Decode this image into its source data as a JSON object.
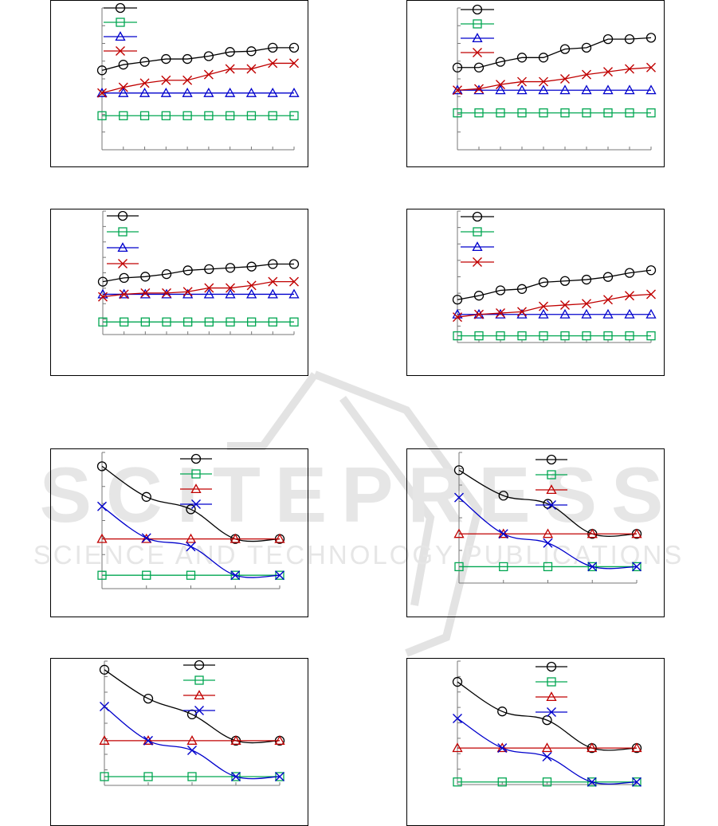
{
  "watermark": {
    "line1": "SCITEPRESS",
    "line2": "SCIENCE AND TECHNOLOGY PUBLICATIONS",
    "color": "#e3e3e3"
  },
  "colors": {
    "black": "#000000",
    "green": "#00a651",
    "blue": "#0000cc",
    "red": "#c00000"
  },
  "chart_data": [
    {
      "type": "line",
      "x": [
        1,
        2,
        3,
        4,
        5,
        6,
        7,
        8,
        9,
        10
      ],
      "ylim": [
        0,
        10
      ],
      "series": [
        {
          "marker": "circle",
          "color": "#000000",
          "values": [
            5.6,
            6.0,
            6.2,
            6.4,
            6.4,
            6.6,
            6.9,
            6.95,
            7.2,
            7.2
          ]
        },
        {
          "marker": "square",
          "color": "#00a651",
          "values": [
            2.4,
            2.4,
            2.4,
            2.4,
            2.4,
            2.4,
            2.4,
            2.4,
            2.4,
            2.4
          ]
        },
        {
          "marker": "triangle",
          "color": "#0000cc",
          "values": [
            4.0,
            4.0,
            4.0,
            4.0,
            4.0,
            4.0,
            4.0,
            4.0,
            4.0,
            4.0
          ]
        },
        {
          "marker": "x",
          "color": "#c00000",
          "values": [
            4.0,
            4.4,
            4.7,
            4.9,
            4.9,
            5.3,
            5.7,
            5.7,
            6.1,
            6.1
          ]
        }
      ]
    },
    {
      "type": "line",
      "x": [
        1,
        2,
        3,
        4,
        5,
        6,
        7,
        8,
        9,
        10
      ],
      "ylim": [
        0,
        10
      ],
      "series": [
        {
          "marker": "circle",
          "color": "#000000",
          "values": [
            5.8,
            5.8,
            6.2,
            6.5,
            6.5,
            7.1,
            7.2,
            7.8,
            7.8,
            7.9
          ]
        },
        {
          "marker": "square",
          "color": "#00a651",
          "values": [
            2.6,
            2.6,
            2.6,
            2.6,
            2.6,
            2.6,
            2.6,
            2.6,
            2.6,
            2.6
          ]
        },
        {
          "marker": "triangle",
          "color": "#0000cc",
          "values": [
            4.2,
            4.2,
            4.2,
            4.2,
            4.2,
            4.2,
            4.2,
            4.2,
            4.2,
            4.2
          ]
        },
        {
          "marker": "x",
          "color": "#c00000",
          "values": [
            4.2,
            4.3,
            4.6,
            4.8,
            4.8,
            5.0,
            5.3,
            5.5,
            5.7,
            5.8
          ]
        }
      ]
    },
    {
      "type": "line",
      "x": [
        1,
        2,
        3,
        4,
        5,
        6,
        7,
        8,
        9,
        10
      ],
      "ylim": [
        0,
        10
      ],
      "series": [
        {
          "marker": "circle",
          "color": "#000000",
          "values": [
            4.2,
            4.5,
            4.6,
            4.8,
            5.1,
            5.2,
            5.3,
            5.4,
            5.6,
            5.6
          ]
        },
        {
          "marker": "square",
          "color": "#00a651",
          "values": [
            1.0,
            1.0,
            1.0,
            1.0,
            1.0,
            1.0,
            1.0,
            1.0,
            1.0,
            1.0
          ]
        },
        {
          "marker": "triangle",
          "color": "#0000cc",
          "values": [
            3.2,
            3.2,
            3.2,
            3.2,
            3.2,
            3.2,
            3.2,
            3.2,
            3.2,
            3.2
          ]
        },
        {
          "marker": "x",
          "color": "#c00000",
          "values": [
            3.0,
            3.2,
            3.3,
            3.3,
            3.4,
            3.7,
            3.7,
            3.9,
            4.2,
            4.2
          ]
        }
      ]
    },
    {
      "type": "line",
      "x": [
        1,
        2,
        3,
        4,
        5,
        6,
        7,
        8,
        9,
        10
      ],
      "ylim": [
        0,
        10
      ],
      "series": [
        {
          "marker": "circle",
          "color": "#000000",
          "values": [
            3.2,
            3.5,
            3.9,
            4.0,
            4.5,
            4.6,
            4.7,
            4.9,
            5.2,
            5.4
          ]
        },
        {
          "marker": "square",
          "color": "#00a651",
          "values": [
            0.5,
            0.5,
            0.5,
            0.5,
            0.5,
            0.5,
            0.5,
            0.5,
            0.5,
            0.5
          ]
        },
        {
          "marker": "triangle",
          "color": "#0000cc",
          "values": [
            2.1,
            2.1,
            2.1,
            2.1,
            2.1,
            2.1,
            2.1,
            2.1,
            2.1,
            2.1
          ]
        },
        {
          "marker": "x",
          "color": "#c00000",
          "values": [
            1.9,
            2.1,
            2.2,
            2.3,
            2.7,
            2.8,
            2.9,
            3.2,
            3.5,
            3.6
          ]
        }
      ]
    },
    {
      "type": "line",
      "x": [
        1,
        2,
        3,
        4,
        5
      ],
      "ylim": [
        0,
        7
      ],
      "series": [
        {
          "marker": "circle",
          "color": "#000000",
          "values": [
            6.4,
            4.8,
            4.15,
            2.6,
            2.6
          ]
        },
        {
          "marker": "square",
          "color": "#00a651",
          "values": [
            0.7,
            0.7,
            0.7,
            0.7,
            0.7
          ]
        },
        {
          "marker": "triangle",
          "color": "#c00000",
          "values": [
            2.6,
            2.6,
            2.6,
            2.6,
            2.6
          ]
        },
        {
          "marker": "x",
          "color": "#0000cc",
          "values": [
            4.3,
            2.65,
            2.2,
            0.7,
            0.7
          ]
        }
      ]
    },
    {
      "type": "line",
      "x": [
        1,
        2,
        3,
        4,
        5
      ],
      "ylim": [
        0,
        7
      ],
      "series": [
        {
          "marker": "circle",
          "color": "#000000",
          "values": [
            6.2,
            4.8,
            4.35,
            2.7,
            2.7
          ]
        },
        {
          "marker": "square",
          "color": "#00a651",
          "values": [
            0.9,
            0.9,
            0.9,
            0.9,
            0.9
          ]
        },
        {
          "marker": "triangle",
          "color": "#c00000",
          "values": [
            2.7,
            2.7,
            2.7,
            2.7,
            2.7
          ]
        },
        {
          "marker": "x",
          "color": "#0000cc",
          "values": [
            4.7,
            2.7,
            2.2,
            0.9,
            0.9
          ]
        }
      ]
    },
    {
      "type": "line",
      "x": [
        1,
        2,
        3,
        4,
        5
      ],
      "ylim": [
        0,
        7
      ],
      "series": [
        {
          "marker": "circle",
          "color": "#000000",
          "values": [
            6.6,
            4.95,
            4.05,
            2.55,
            2.55
          ]
        },
        {
          "marker": "square",
          "color": "#00a651",
          "values": [
            0.5,
            0.5,
            0.5,
            0.5,
            0.5
          ]
        },
        {
          "marker": "triangle",
          "color": "#c00000",
          "values": [
            2.55,
            2.55,
            2.55,
            2.55,
            2.55
          ]
        },
        {
          "marker": "x",
          "color": "#0000cc",
          "values": [
            4.5,
            2.55,
            2.0,
            0.5,
            0.5
          ]
        }
      ]
    },
    {
      "type": "line",
      "x": [
        1,
        2,
        3,
        4,
        5
      ],
      "ylim": [
        0,
        7
      ],
      "series": [
        {
          "marker": "circle",
          "color": "#000000",
          "values": [
            5.9,
            4.2,
            3.7,
            2.1,
            2.1
          ]
        },
        {
          "marker": "square",
          "color": "#00a651",
          "values": [
            0.15,
            0.15,
            0.15,
            0.15,
            0.15
          ]
        },
        {
          "marker": "triangle",
          "color": "#c00000",
          "values": [
            2.1,
            2.1,
            2.1,
            2.1,
            2.1
          ]
        },
        {
          "marker": "x",
          "color": "#0000cc",
          "values": [
            3.8,
            2.1,
            1.6,
            0.15,
            0.15
          ]
        }
      ]
    }
  ]
}
